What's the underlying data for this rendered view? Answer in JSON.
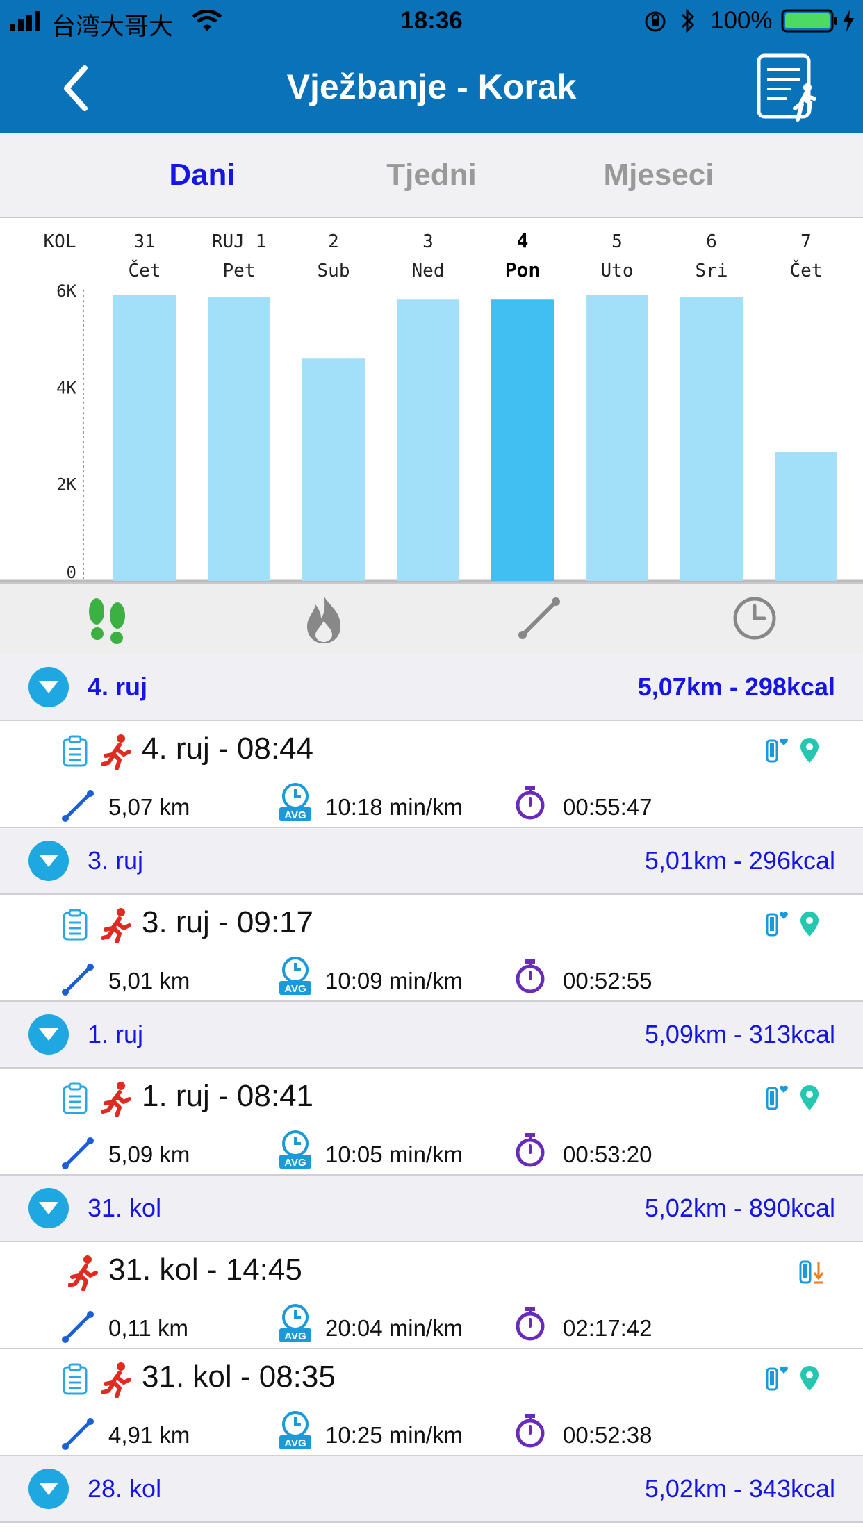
{
  "status_bar": {
    "carrier": "台湾大哥大",
    "time": "18:36",
    "battery": "100%"
  },
  "header": {
    "title": "Vježbanje - Korak",
    "back_icon": "chevron-left-icon",
    "action_icon": "report-icon"
  },
  "tabs": [
    {
      "label": "Dani",
      "active": true
    },
    {
      "label": "Tjedni",
      "active": false
    },
    {
      "label": "Mjeseci",
      "active": false
    }
  ],
  "colors": {
    "accent": "#0a72b8",
    "bar": "#a2dff8",
    "bar_selected": "#42bff2",
    "link": "#1515e6"
  },
  "chart_data": {
    "type": "bar",
    "month_label": "KOL",
    "categories": [
      {
        "top": "31",
        "bottom": "Čet"
      },
      {
        "top": "RUJ 1",
        "bottom": "Pet"
      },
      {
        "top": "2",
        "bottom": "Sub"
      },
      {
        "top": "3",
        "bottom": "Ned"
      },
      {
        "top": "4",
        "bottom": "Pon"
      },
      {
        "top": "5",
        "bottom": "Uto"
      },
      {
        "top": "6",
        "bottom": "Sri"
      },
      {
        "top": "7",
        "bottom": "Čet"
      }
    ],
    "values": [
      5900,
      5860,
      4590,
      5810,
      5810,
      5900,
      5860,
      2660
    ],
    "selected_index": 4,
    "yticks": [
      "0",
      "2K",
      "4K",
      "6K"
    ],
    "ylim": [
      0,
      6000
    ]
  },
  "metric_tabs": [
    "footsteps-icon",
    "flame-icon",
    "distance-icon",
    "clock-icon"
  ],
  "groups": [
    {
      "date": "4. ruj",
      "summary": "5,07km - 298kcal",
      "bold": true,
      "entries": [
        {
          "title": "4. ruj - 08:44",
          "distance": "5,07 km",
          "pace": "10:18 min/km",
          "duration": "00:55:47",
          "report": true,
          "icons": "heart-gps"
        }
      ]
    },
    {
      "date": "3. ruj",
      "summary": "5,01km - 296kcal",
      "bold": false,
      "entries": [
        {
          "title": "3. ruj - 09:17",
          "distance": "5,01 km",
          "pace": "10:09 min/km",
          "duration": "00:52:55",
          "report": true,
          "icons": "heart-gps"
        }
      ]
    },
    {
      "date": "1. ruj",
      "summary": "5,09km - 313kcal",
      "bold": false,
      "entries": [
        {
          "title": "1. ruj - 08:41",
          "distance": "5,09 km",
          "pace": "10:05 min/km",
          "duration": "00:53:20",
          "report": true,
          "icons": "heart-gps"
        }
      ]
    },
    {
      "date": "31. kol",
      "summary": "5,02km - 890kcal",
      "bold": false,
      "entries": [
        {
          "title": "31. kol - 14:45",
          "distance": "0,11 km",
          "pace": "20:04 min/km",
          "duration": "02:17:42",
          "report": false,
          "icons": "sync"
        },
        {
          "title": "31. kol - 08:35",
          "distance": "4,91 km",
          "pace": "10:25 min/km",
          "duration": "00:52:38",
          "report": true,
          "icons": "heart-gps"
        }
      ]
    },
    {
      "date": "28. kol",
      "summary": "5,02km - 343kcal",
      "bold": false,
      "entries": []
    }
  ],
  "avg_badge": "AVG"
}
